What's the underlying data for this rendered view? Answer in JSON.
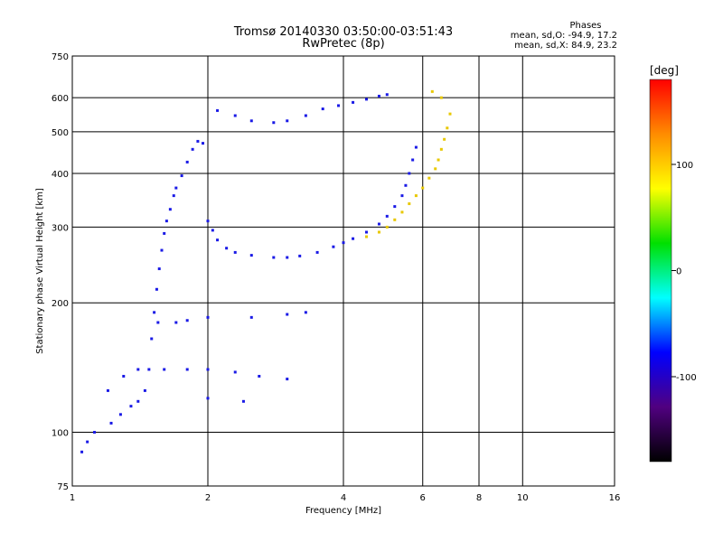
{
  "chart_data": {
    "type": "scatter",
    "title": "Tromsø 20140330 03:50:00-03:51:43",
    "subtitle": "RwPretec (8p)",
    "xlabel": "Frequency [MHz]",
    "ylabel": "Stationary phase Virtual Height [km]",
    "x_scale": "log",
    "y_scale": "log",
    "xlim": [
      1,
      16
    ],
    "ylim": [
      75,
      750
    ],
    "x_ticks": [
      1,
      2,
      4,
      6,
      8,
      10,
      16
    ],
    "y_ticks": [
      75,
      100,
      200,
      300,
      400,
      500,
      600,
      750
    ],
    "x_grid": [
      2,
      4,
      6,
      8,
      10
    ],
    "y_grid": [
      100,
      200,
      300,
      400,
      500,
      600
    ],
    "stats": {
      "heading": "Phases",
      "line_o": "mean, sd,O: -94.9, 17.2",
      "line_x": "mean, sd,X:  84.9, 23.2"
    },
    "colorbar": {
      "label": "[deg]",
      "range": [
        -180,
        180
      ],
      "ticks": [
        100,
        0,
        -100
      ],
      "stops": [
        "#ff0000",
        "#ff8c00",
        "#ffff00",
        "#00e000",
        "#00ffff",
        "#0000ff",
        "#500080",
        "#000000"
      ]
    },
    "series": [
      {
        "trace": "O-mode F2 trace (blue, phase near -100 deg)",
        "color": "#1a1ae6",
        "points": [
          [
            1.05,
            90
          ],
          [
            1.08,
            95
          ],
          [
            1.12,
            100
          ],
          [
            1.22,
            105
          ],
          [
            1.28,
            110
          ],
          [
            1.35,
            115
          ],
          [
            1.4,
            118
          ],
          [
            1.45,
            125
          ],
          [
            1.48,
            140
          ],
          [
            1.5,
            165
          ],
          [
            1.52,
            190
          ],
          [
            1.54,
            215
          ],
          [
            1.56,
            240
          ],
          [
            1.58,
            265
          ],
          [
            1.6,
            290
          ],
          [
            1.62,
            310
          ],
          [
            1.65,
            330
          ],
          [
            1.68,
            355
          ],
          [
            1.7,
            370
          ],
          [
            1.75,
            395
          ],
          [
            1.8,
            425
          ],
          [
            1.85,
            455
          ],
          [
            1.9,
            475
          ],
          [
            1.95,
            470
          ],
          [
            2.0,
            310
          ],
          [
            2.05,
            295
          ],
          [
            2.1,
            280
          ],
          [
            2.2,
            268
          ],
          [
            2.3,
            262
          ],
          [
            2.5,
            258
          ],
          [
            2.8,
            255
          ],
          [
            3.0,
            255
          ],
          [
            3.2,
            257
          ],
          [
            3.5,
            262
          ],
          [
            3.8,
            270
          ],
          [
            4.0,
            276
          ],
          [
            4.2,
            282
          ],
          [
            4.5,
            292
          ],
          [
            4.8,
            305
          ],
          [
            5.0,
            318
          ],
          [
            5.2,
            335
          ],
          [
            5.4,
            355
          ],
          [
            5.5,
            375
          ],
          [
            5.6,
            400
          ],
          [
            5.7,
            430
          ],
          [
            5.8,
            460
          ],
          [
            2.1,
            560
          ],
          [
            2.3,
            545
          ],
          [
            2.5,
            530
          ],
          [
            2.8,
            525
          ],
          [
            3.0,
            530
          ],
          [
            3.3,
            545
          ],
          [
            3.6,
            565
          ],
          [
            3.9,
            575
          ],
          [
            4.2,
            585
          ],
          [
            4.5,
            595
          ],
          [
            4.8,
            605
          ],
          [
            5.0,
            610
          ],
          [
            1.55,
            180
          ],
          [
            1.7,
            180
          ],
          [
            1.8,
            182
          ],
          [
            2.0,
            185
          ],
          [
            2.5,
            185
          ],
          [
            3.0,
            188
          ],
          [
            3.3,
            190
          ],
          [
            1.6,
            140
          ],
          [
            1.8,
            140
          ],
          [
            2.0,
            140
          ],
          [
            2.3,
            138
          ],
          [
            2.6,
            135
          ],
          [
            3.0,
            133
          ],
          [
            1.3,
            135
          ],
          [
            1.4,
            140
          ],
          [
            1.2,
            125
          ],
          [
            2.0,
            120
          ],
          [
            2.4,
            118
          ]
        ]
      },
      {
        "trace": "X-mode F2 trace (yellow/green, phase near +85 deg)",
        "color": "#e8c800",
        "points": [
          [
            4.5,
            285
          ],
          [
            4.8,
            292
          ],
          [
            5.0,
            300
          ],
          [
            5.2,
            312
          ],
          [
            5.4,
            325
          ],
          [
            5.6,
            340
          ],
          [
            5.8,
            355
          ],
          [
            6.0,
            370
          ],
          [
            6.2,
            390
          ],
          [
            6.4,
            410
          ],
          [
            6.5,
            430
          ],
          [
            6.6,
            455
          ],
          [
            6.7,
            480
          ],
          [
            6.8,
            510
          ],
          [
            6.9,
            550
          ],
          [
            6.6,
            600
          ],
          [
            6.3,
            620
          ]
        ]
      }
    ]
  }
}
